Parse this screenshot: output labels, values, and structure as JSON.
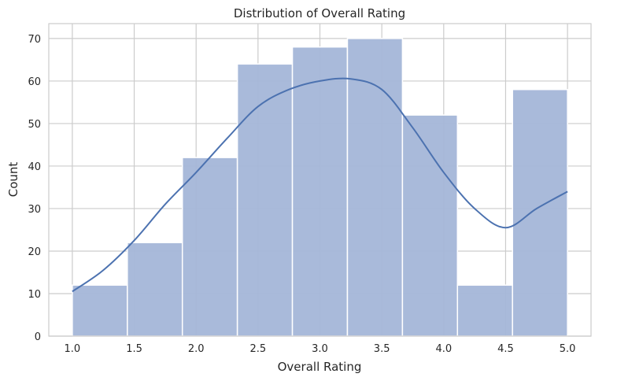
{
  "chart_data": {
    "type": "bar",
    "title": "Distribution of Overall Rating",
    "xlabel": "Overall Rating",
    "ylabel": "Count",
    "xlim": [
      0.81,
      5.19
    ],
    "ylim": [
      0,
      73.5
    ],
    "x_ticks": [
      1.0,
      1.5,
      2.0,
      2.5,
      3.0,
      3.5,
      4.0,
      4.5,
      5.0
    ],
    "x_tick_labels": [
      "1.0",
      "1.5",
      "2.0",
      "2.5",
      "3.0",
      "3.5",
      "4.0",
      "4.5",
      "5.0"
    ],
    "y_ticks": [
      0,
      10,
      20,
      30,
      40,
      50,
      60,
      70
    ],
    "y_tick_labels": [
      "0",
      "10",
      "20",
      "30",
      "40",
      "50",
      "60",
      "70"
    ],
    "grid": true,
    "bins": [
      {
        "start": 1.0,
        "end": 1.4444,
        "count": 12
      },
      {
        "start": 1.4444,
        "end": 1.8889,
        "count": 22
      },
      {
        "start": 1.8889,
        "end": 2.3333,
        "count": 42
      },
      {
        "start": 2.3333,
        "end": 2.7778,
        "count": 64
      },
      {
        "start": 2.7778,
        "end": 3.2222,
        "count": 68
      },
      {
        "start": 3.2222,
        "end": 3.6667,
        "count": 70
      },
      {
        "start": 3.6667,
        "end": 4.1111,
        "count": 52
      },
      {
        "start": 4.1111,
        "end": 4.5556,
        "count": 12
      },
      {
        "start": 4.5556,
        "end": 5.0,
        "count": 58
      }
    ],
    "kde": {
      "x": [
        1.0,
        1.25,
        1.5,
        1.75,
        2.0,
        2.25,
        2.5,
        2.75,
        3.0,
        3.25,
        3.5,
        3.75,
        4.0,
        4.25,
        4.5,
        4.75,
        5.0
      ],
      "y": [
        10.5,
        15.5,
        22.5,
        31.0,
        38.5,
        46.5,
        54.0,
        58.0,
        60.0,
        60.5,
        58.0,
        49.0,
        38.5,
        30.0,
        25.5,
        30.0,
        34.0
      ]
    },
    "colors": {
      "bar_fill": "#a4b6d8",
      "bar_edge": "#ffffff",
      "kde_line": "#4c72b0",
      "grid": "#cccccc",
      "axes_edge": "#cccccc"
    }
  }
}
